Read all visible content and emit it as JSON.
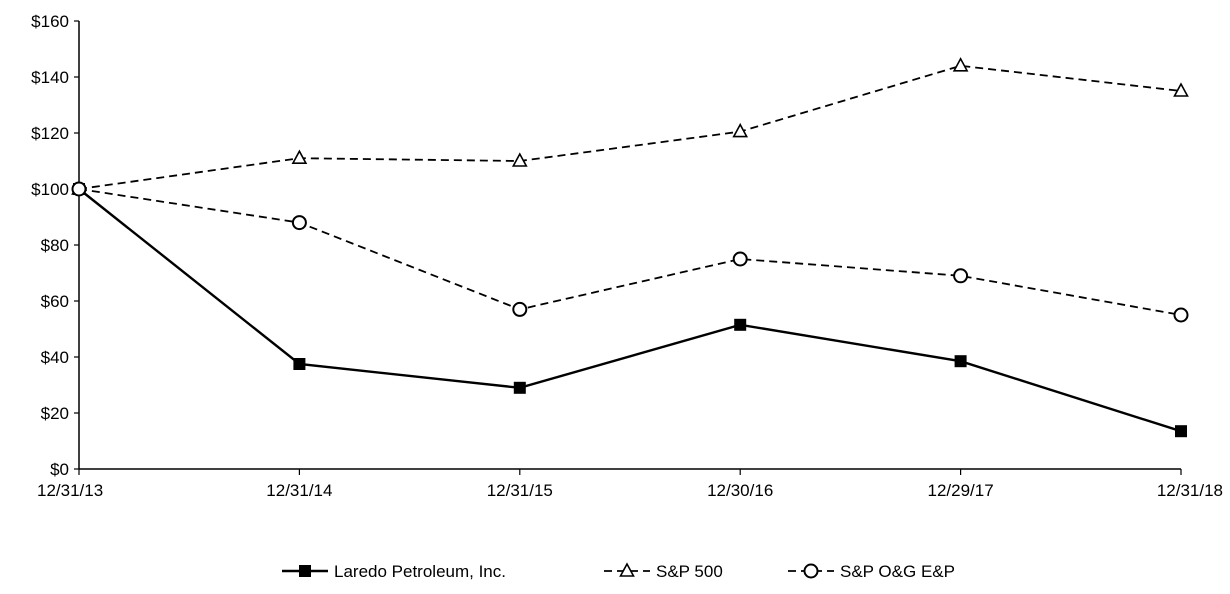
{
  "chart_data": {
    "type": "line",
    "title": "",
    "xlabel": "",
    "ylabel": "",
    "categories": [
      "12/31/13",
      "12/31/14",
      "12/31/15",
      "12/30/16",
      "12/29/17",
      "12/31/18"
    ],
    "ylim": [
      0,
      160
    ],
    "y_ticks": [
      0,
      20,
      40,
      60,
      80,
      100,
      120,
      140,
      160
    ],
    "y_tick_labels": [
      "$0",
      "$20",
      "$40",
      "$60",
      "$80",
      "$100",
      "$120",
      "$140",
      "$160"
    ],
    "grid": false,
    "legend_position": "bottom-center",
    "series": [
      {
        "name": "Laredo Petroleum, Inc.",
        "values": [
          100,
          37.5,
          29,
          51.5,
          38.5,
          13.5
        ],
        "marker": "square-filled",
        "line_style": "solid",
        "color": "#000000"
      },
      {
        "name": "S&P 500",
        "values": [
          100,
          111,
          110,
          120.5,
          144,
          135
        ],
        "marker": "triangle-open",
        "line_style": "dashed",
        "color": "#000000"
      },
      {
        "name": "S&P O&G E&P",
        "values": [
          100,
          88,
          57,
          75,
          69,
          55
        ],
        "marker": "circle-open",
        "line_style": "dashed",
        "color": "#000000"
      }
    ]
  }
}
